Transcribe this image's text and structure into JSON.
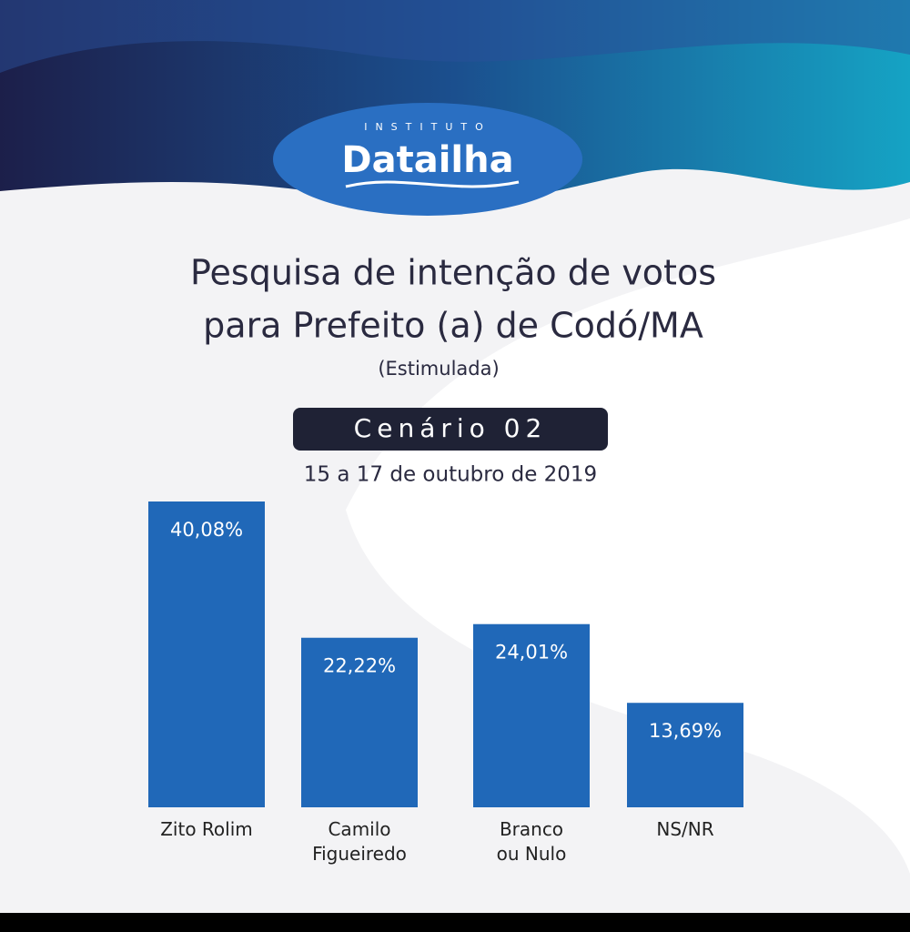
{
  "logo": {
    "top": "INSTITUTO",
    "name": "Datailha"
  },
  "chart_data": {
    "type": "bar",
    "title": [
      "Pesquisa de intenção de votos",
      "para Prefeito (a) de Codó/MA"
    ],
    "subtitle": "(Estimulada)",
    "scenario": "Cenário 02",
    "date": "15 a 17 de outubro de 2019",
    "categories": [
      "Zito Rolim",
      "Camilo\nFigueiredo",
      "Branco\nou Nulo",
      "NS/NR"
    ],
    "values": [
      40.08,
      22.22,
      24.01,
      13.69
    ],
    "value_labels": [
      "40,08%",
      "22,22%",
      "24,01%",
      "13,69%"
    ],
    "color": "#2068b8"
  }
}
